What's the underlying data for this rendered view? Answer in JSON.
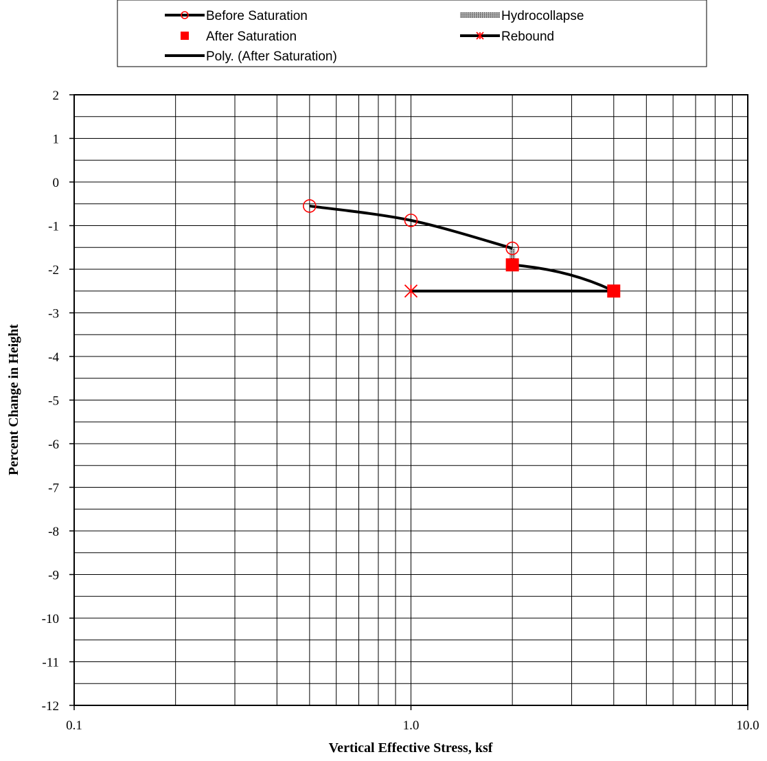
{
  "chart_data": {
    "type": "scatter",
    "xscale": "log",
    "xlim": [
      0.1,
      10.0
    ],
    "ylim": [
      -12,
      2
    ],
    "xticks": [
      0.1,
      1.0,
      10.0
    ],
    "xtick_labels": [
      "0.1",
      "1.0",
      "10.0"
    ],
    "yticks": [
      2,
      1,
      0,
      -1,
      -2,
      -3,
      -4,
      -5,
      -6,
      -7,
      -8,
      -9,
      -10,
      -11,
      -12
    ],
    "ytick_labels": [
      "2",
      "1",
      "0",
      "-1",
      "-2",
      "-3",
      "-4",
      "-5",
      "-6",
      "-7",
      "-8",
      "-9",
      "-10",
      "-11",
      "-12"
    ],
    "xlabel": "Vertical Effective Stress, ksf",
    "ylabel": "Percent Change in Height",
    "grid": true,
    "legend_position": "top",
    "series": [
      {
        "name": "Before Saturation",
        "marker": "circle-open",
        "line": "smooth",
        "color": "#ff0000",
        "x": [
          0.5,
          1.0,
          2.0
        ],
        "y": [
          -0.55,
          -0.88,
          -1.52
        ]
      },
      {
        "name": "Hydrocollapse",
        "marker": "none",
        "line": "hatched",
        "x": [
          2.0,
          2.0
        ],
        "y": [
          -1.52,
          -1.9
        ]
      },
      {
        "name": "After Saturation",
        "marker": "square",
        "line": "none",
        "color": "#ff0000",
        "x": [
          2.0,
          4.0
        ],
        "y": [
          -1.9,
          -2.5
        ]
      },
      {
        "name": "Rebound",
        "marker": "asterisk",
        "line": "straight",
        "color": "#ff0000",
        "x": [
          4.0,
          1.0
        ],
        "y": [
          -2.5,
          -2.5
        ]
      },
      {
        "name": "Poly. (After Saturation)",
        "marker": "none",
        "line": "trendline",
        "x": [
          2.0,
          4.0
        ],
        "y": [
          -1.9,
          -2.5
        ]
      }
    ]
  }
}
